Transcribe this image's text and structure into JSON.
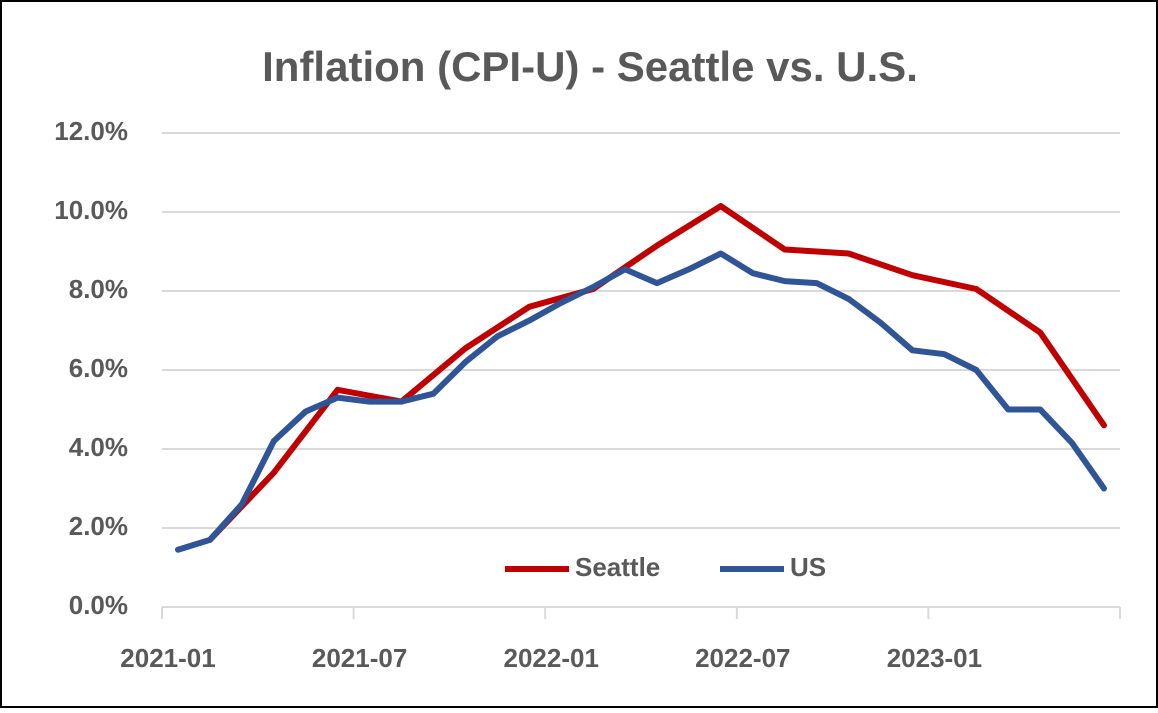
{
  "chart_data": {
    "type": "line",
    "title": "Inflation (CPI-U) - Seattle vs. U.S.",
    "xlim": [
      "2021-01",
      "2023-07"
    ],
    "xticks": [
      "2021-01",
      "2021-07",
      "2022-01",
      "2022-07",
      "2023-01"
    ],
    "ylim": [
      0,
      12
    ],
    "yticks": [
      {
        "value": 0,
        "label": "0.0%"
      },
      {
        "value": 2,
        "label": "2.0%"
      },
      {
        "value": 4,
        "label": "4.0%"
      },
      {
        "value": 6,
        "label": "6.0%"
      },
      {
        "value": 8,
        "label": "8.0%"
      },
      {
        "value": 10,
        "label": "10.0%"
      },
      {
        "value": 12,
        "label": "12.0%"
      }
    ],
    "grid": true,
    "legend": "bottom",
    "series": [
      {
        "name": "Seattle",
        "color": "#c00000",
        "x": [
          "2021-02",
          "2021-04",
          "2021-06",
          "2021-08",
          "2021-10",
          "2021-12",
          "2022-02",
          "2022-04",
          "2022-06",
          "2022-08",
          "2022-10",
          "2022-12",
          "2023-02",
          "2023-04",
          "2023-06"
        ],
        "values": [
          1.7,
          3.4,
          5.5,
          5.2,
          6.55,
          7.6,
          8.05,
          9.15,
          10.15,
          9.05,
          8.95,
          8.4,
          8.05,
          6.95,
          4.6
        ]
      },
      {
        "name": "US",
        "color": "#2f5597",
        "x": [
          "2021-01",
          "2021-02",
          "2021-03",
          "2021-04",
          "2021-05",
          "2021-06",
          "2021-07",
          "2021-08",
          "2021-09",
          "2021-10",
          "2021-11",
          "2021-12",
          "2022-01",
          "2022-02",
          "2022-03",
          "2022-04",
          "2022-05",
          "2022-06",
          "2022-07",
          "2022-08",
          "2022-09",
          "2022-10",
          "2022-11",
          "2022-12",
          "2023-01",
          "2023-02",
          "2023-03",
          "2023-04",
          "2023-05",
          "2023-06"
        ],
        "values": [
          1.45,
          1.7,
          2.6,
          4.2,
          4.95,
          5.3,
          5.2,
          5.2,
          5.4,
          6.2,
          6.85,
          7.25,
          7.7,
          8.1,
          8.55,
          8.2,
          8.55,
          8.95,
          8.45,
          8.25,
          8.2,
          7.8,
          7.2,
          6.5,
          6.4,
          6.0,
          5.0,
          5.0,
          4.15,
          3.0
        ]
      }
    ]
  }
}
